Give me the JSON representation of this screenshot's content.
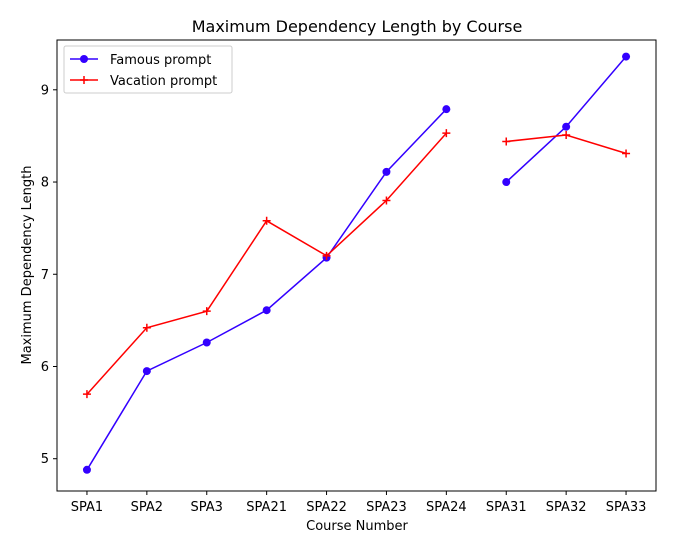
{
  "chart_data": {
    "type": "line",
    "title": "Maximum Dependency Length by Course",
    "xlabel": "Course Number",
    "ylabel": "Maximum Dependency Length",
    "categories": [
      "SPA1",
      "SPA2",
      "SPA3",
      "SPA21",
      "SPA22",
      "SPA23",
      "SPA24",
      "SPA31",
      "SPA32",
      "SPA33"
    ],
    "segments": [
      [
        0,
        6
      ],
      [
        7,
        9
      ]
    ],
    "ylim": [
      4.65,
      9.54
    ],
    "yticks": [
      5,
      6,
      7,
      8,
      9
    ],
    "grid": false,
    "legend_position": "top-left",
    "series": [
      {
        "name": "Famous prompt",
        "color": "#3300ff",
        "marker": "circle",
        "values": [
          4.88,
          5.95,
          6.26,
          6.61,
          7.18,
          8.11,
          8.79,
          8.0,
          8.6,
          9.36
        ]
      },
      {
        "name": "Vacation prompt",
        "color": "#ff0000",
        "marker": "plus",
        "values": [
          5.7,
          6.42,
          6.6,
          7.58,
          7.2,
          7.8,
          8.53,
          8.44,
          8.51,
          8.31
        ]
      }
    ]
  }
}
